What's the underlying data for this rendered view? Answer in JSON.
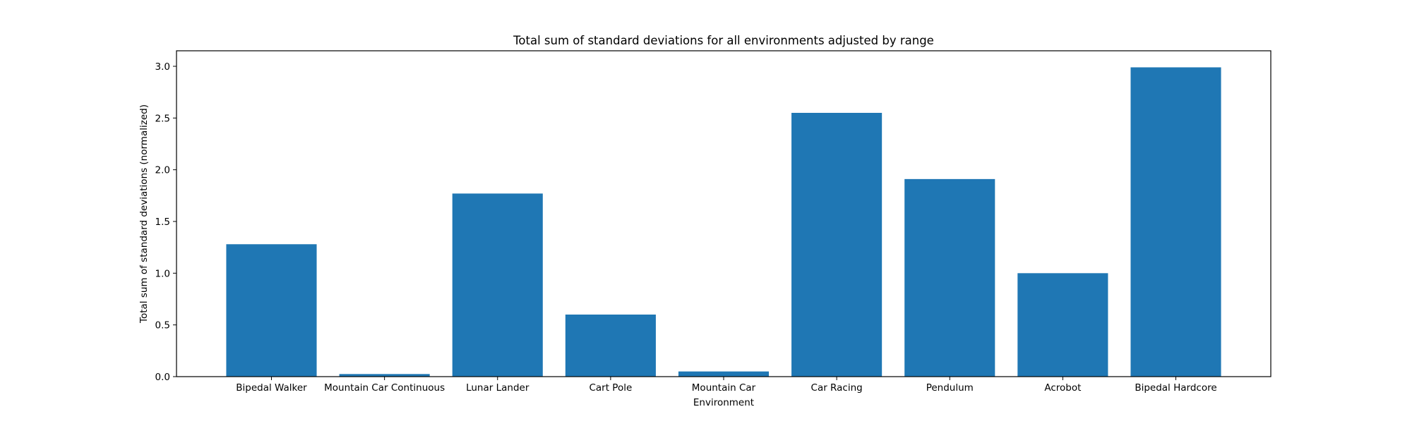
{
  "chart_data": {
    "type": "bar",
    "title": "Total sum of standard deviations for all environments adjusted by range",
    "xlabel": "Environment",
    "ylabel": "Total sum of standard deviations (normalized)",
    "categories": [
      "Bipedal Walker",
      "Mountain Car Continuous",
      "Lunar Lander",
      "Cart Pole",
      "Mountain Car",
      "Car Racing",
      "Pendulum",
      "Acrobot",
      "Bipedal Hardcore"
    ],
    "values": [
      1.28,
      0.025,
      1.77,
      0.6,
      0.05,
      2.55,
      1.91,
      1.0,
      2.99
    ],
    "ylim": [
      0.0,
      3.15
    ],
    "yticks": [
      0.0,
      0.5,
      1.0,
      1.5,
      2.0,
      2.5,
      3.0
    ],
    "ytick_labels": [
      "0.0",
      "0.5",
      "1.0",
      "1.5",
      "2.0",
      "2.5",
      "3.0"
    ],
    "bar_color": "#1f77b4",
    "grid": false,
    "legend": "none"
  }
}
